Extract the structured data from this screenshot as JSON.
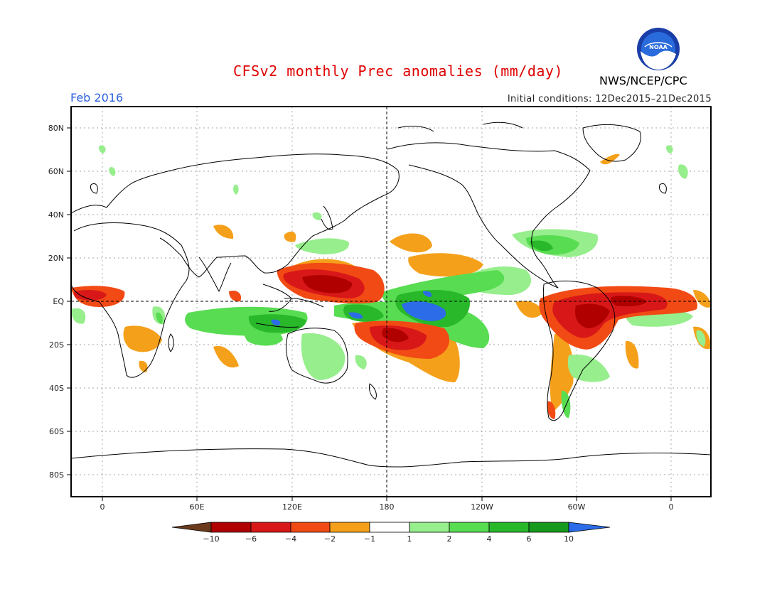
{
  "title": "CFSv2 monthly Prec anomalies (mm/day)",
  "period": "Feb 2016",
  "initial_conditions": "Initial conditions: 12Dec2015–21Dec2015",
  "agency": "NWS/NCEP/CPC",
  "logo_text": "NOAA",
  "axes": {
    "lat_ticks": [
      "80N",
      "60N",
      "40N",
      "20N",
      "EQ",
      "20S",
      "40S",
      "60S",
      "80S"
    ],
    "lon_ticks": [
      "0",
      "60E",
      "120E",
      "180",
      "120W",
      "60W",
      "0"
    ]
  },
  "colorbar": {
    "labels": [
      "−10",
      "−6",
      "−4",
      "−2",
      "−1",
      "1",
      "2",
      "4",
      "6",
      "10"
    ],
    "colors": [
      "#6b3a1c",
      "#b00000",
      "#d81818",
      "#f24a14",
      "#f5a01a",
      "#ffffff",
      "#96ee8c",
      "#58dc52",
      "#28b82a",
      "#169a1e",
      "#2c6ce8"
    ]
  },
  "colors": {
    "title": "#e00000",
    "period": "#2a5fe0",
    "wet_strong": "#2c6ce8",
    "dry_strong": "#b00000"
  }
}
